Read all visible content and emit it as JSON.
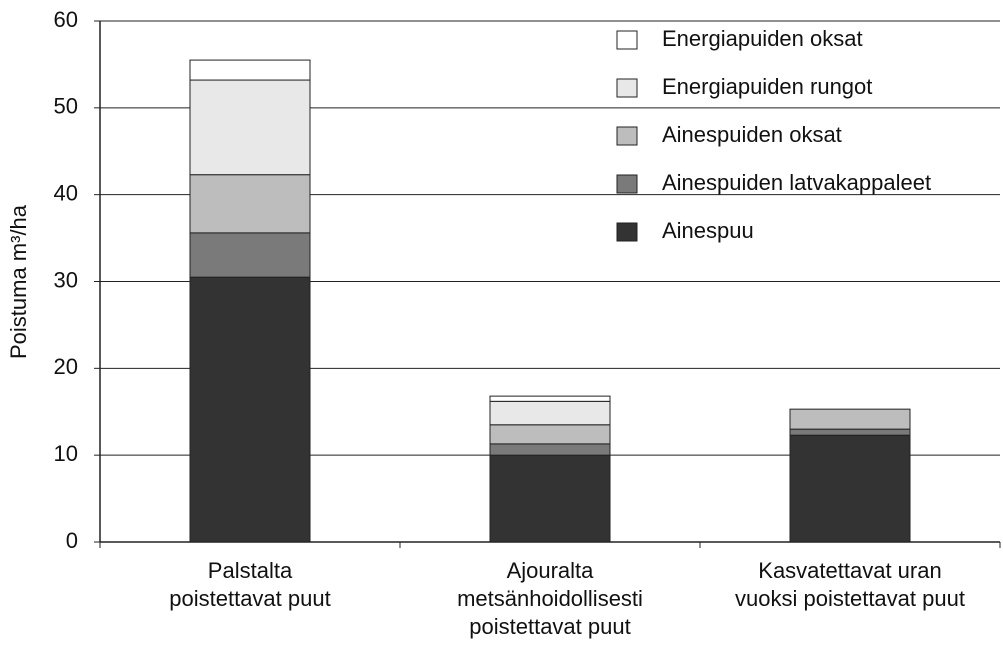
{
  "chart_data": {
    "type": "stacked_bar",
    "ylabel": "Poistuma m³/ha",
    "categories": [
      [
        "Palstalta",
        "poistettavat puut"
      ],
      [
        "Ajouralta",
        "metsänhoidollisesti",
        "poistettavat puut"
      ],
      [
        "Kasvatettavat uran",
        "vuoksi poistettavat puut"
      ]
    ],
    "series": [
      {
        "name": "Ainespuu",
        "color": "#333333",
        "values": [
          30.5,
          10.0,
          12.3
        ]
      },
      {
        "name": "Ainespuiden latvakappaleet",
        "color": "#7a7a7a",
        "values": [
          5.1,
          1.3,
          0.7
        ]
      },
      {
        "name": "Ainespuiden oksat",
        "color": "#bdbdbd",
        "values": [
          6.7,
          2.2,
          2.3
        ]
      },
      {
        "name": "Energiapuiden rungot",
        "color": "#e8e8e8",
        "values": [
          10.9,
          2.7,
          0
        ]
      },
      {
        "name": "Energiapuiden oksat",
        "color": "#ffffff",
        "values": [
          2.3,
          0.6,
          0
        ]
      }
    ],
    "ylim": [
      0,
      60
    ],
    "yticks": [
      0,
      10,
      20,
      30,
      40,
      50,
      60
    ],
    "grid": true,
    "legend": "upper right"
  }
}
